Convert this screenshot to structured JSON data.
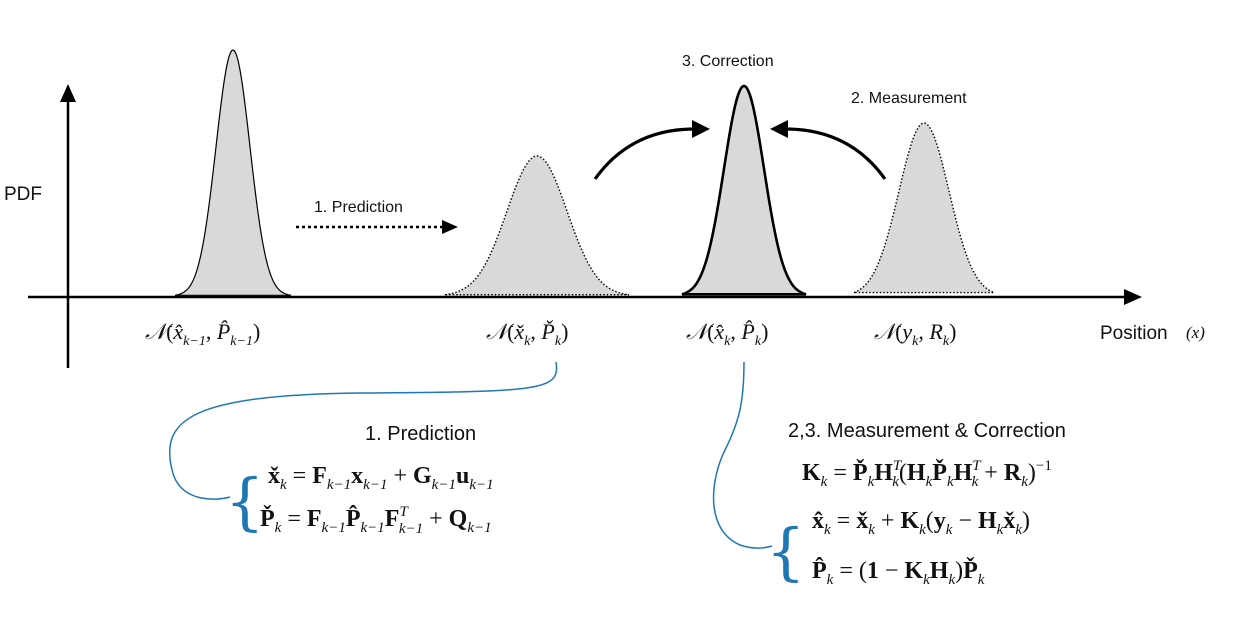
{
  "axes": {
    "y_label": "PDF",
    "x_label": "Position",
    "x_symbol": "(x)"
  },
  "steps": {
    "prediction_arrow_label": "1. Prediction",
    "measurement_label": "2. Measurement",
    "correction_label": "3. Correction"
  },
  "distributions": [
    {
      "id": "prev",
      "symbol": "𝒩",
      "label": "(x̂_{k−1}, P̂_{k−1})",
      "mean": "x̂",
      "mean_sub": "k−1",
      "cov": "P̂",
      "cov_sub": "k−1",
      "style": "solid"
    },
    {
      "id": "predicted",
      "symbol": "𝒩",
      "mean": "x̌",
      "mean_sub": "k",
      "cov": "P̌",
      "cov_sub": "k",
      "style": "dotted"
    },
    {
      "id": "corrected",
      "symbol": "𝒩",
      "mean": "x̂",
      "mean_sub": "k",
      "cov": "P̂",
      "cov_sub": "k",
      "style": "bold"
    },
    {
      "id": "measurement",
      "symbol": "𝒩",
      "mean": "y",
      "mean_sub": "k",
      "cov": "R",
      "cov_sub": "k",
      "style": "dotted"
    }
  ],
  "prediction_block": {
    "title": "1. Prediction",
    "equations": [
      "x̌_k = F_{k−1} x_{k−1} + G_{k−1} u_{k−1}",
      "P̌_k = F_{k−1} P̂_{k−1} F^T_{k−1} + Q_{k−1}"
    ]
  },
  "correction_block": {
    "title": "2,3. Measurement & Correction",
    "equations": [
      "K_k = P̌_k H^T_k (H_k P̌_k H^T_k + R_k)^{−1}",
      "x̂_k = x̌_k + K_k (y_k − H_k x̌_k)",
      "P̂_k = (1 − K_k H_k) P̌_k"
    ]
  },
  "colors": {
    "fill": "#d9d9d9",
    "line": "#000000",
    "brace": "#1f77b4"
  }
}
